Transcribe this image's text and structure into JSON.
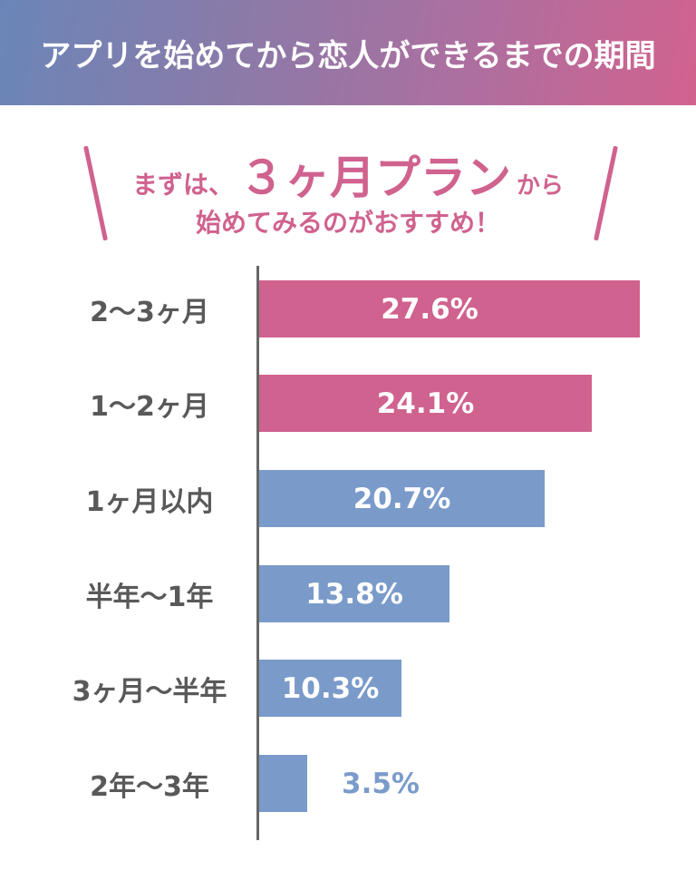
{
  "header": {
    "title": "アプリを始めてから恋人ができるまでの期間"
  },
  "callout": {
    "prefix": "まずは、",
    "highlight": "３ヶ月プラン",
    "suffix": "から",
    "line2": "始めてみるのがおすすめ！"
  },
  "colors": {
    "pink": "#d0628f",
    "blue": "#7a9bca",
    "label_gray": "#595959",
    "axis": "#666666"
  },
  "chart_data": {
    "type": "bar",
    "orientation": "horizontal",
    "title": "アプリを始めてから恋人ができるまでの期間",
    "categories": [
      "2～3ヶ月",
      "1～2ヶ月",
      "1ヶ月以内",
      "半年～1年",
      "3ヶ月～半年",
      "2年～3年"
    ],
    "values": [
      27.6,
      24.1,
      20.7,
      13.8,
      10.3,
      3.5
    ],
    "value_labels": [
      "27.6%",
      "24.1%",
      "20.7%",
      "13.8%",
      "10.3%",
      "3.5%"
    ],
    "bar_colors": [
      "#d0628f",
      "#d0628f",
      "#7a9bca",
      "#7a9bca",
      "#7a9bca",
      "#7a9bca"
    ],
    "xlabel": "",
    "ylabel": "",
    "unit": "%",
    "grid": false,
    "legend": null
  },
  "rows": [
    {
      "label": "2～3ヶ月",
      "value": "27.6%",
      "pct": 27.6,
      "color": "#d0628f",
      "label_inside": true
    },
    {
      "label": "1～2ヶ月",
      "value": "24.1%",
      "pct": 24.1,
      "color": "#d0628f",
      "label_inside": true
    },
    {
      "label": "1ヶ月以内",
      "value": "20.7%",
      "pct": 20.7,
      "color": "#7a9bca",
      "label_inside": true
    },
    {
      "label": "半年～1年",
      "value": "13.8%",
      "pct": 13.8,
      "color": "#7a9bca",
      "label_inside": true
    },
    {
      "label": "3ヶ月～半年",
      "value": "10.3%",
      "pct": 10.3,
      "color": "#7a9bca",
      "label_inside": true
    },
    {
      "label": "2年～3年",
      "value": "3.5%",
      "pct": 3.5,
      "color": "#7a9bca",
      "label_inside": false
    }
  ]
}
